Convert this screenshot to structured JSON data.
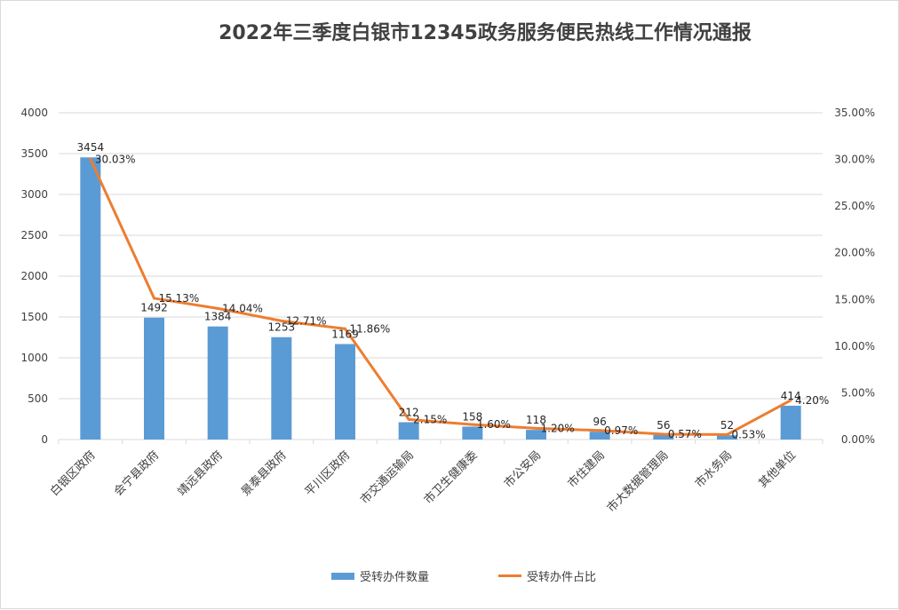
{
  "chart_data": {
    "type": "bar",
    "title": "2022年三季度白银市12345政务服务便民热线工作情况通报",
    "categories": [
      "白银区政府",
      "会宁县政府",
      "靖远县政府",
      "景泰县政府",
      "平川区政府",
      "市交通运输局",
      "市卫生健康委",
      "市公安局",
      "市住建局",
      "市大数据管理局",
      "市水务局",
      "其他单位"
    ],
    "series": [
      {
        "name": "受转办件数量",
        "type": "bar",
        "axis": "left",
        "values": [
          3454,
          1492,
          1384,
          1253,
          1169,
          212,
          158,
          118,
          96,
          56,
          52,
          414
        ],
        "labels": [
          "3454",
          "1492",
          "1384",
          "1253",
          "1169",
          "212",
          "158",
          "118",
          "96",
          "56",
          "52",
          "414"
        ],
        "color": "#5b9bd5"
      },
      {
        "name": "受转办件占比",
        "type": "line",
        "axis": "right",
        "values": [
          30.03,
          15.13,
          14.04,
          12.71,
          11.86,
          2.15,
          1.6,
          1.2,
          0.97,
          0.57,
          0.53,
          4.2
        ],
        "labels": [
          "30.03%",
          "15.13%",
          "14.04%",
          "12.71%",
          "11.86%",
          "2.15%",
          "1.60%",
          "1.20%",
          "0.97%",
          "0.57%",
          "0.53%",
          "4.20%"
        ],
        "color": "#ed7d31"
      }
    ],
    "y_left": {
      "min": 0,
      "max": 4000,
      "ticks": [
        "0",
        "500",
        "1000",
        "1500",
        "2000",
        "2500",
        "3000",
        "3500",
        "4000"
      ]
    },
    "y_right": {
      "min": 0,
      "max": 35,
      "ticks": [
        "0.00%",
        "5.00%",
        "10.00%",
        "15.00%",
        "20.00%",
        "25.00%",
        "30.00%",
        "35.00%"
      ]
    },
    "grid": true,
    "legend_position": "bottom"
  },
  "legend": {
    "bar_label": "受转办件数量",
    "line_label": "受转办件占比"
  }
}
